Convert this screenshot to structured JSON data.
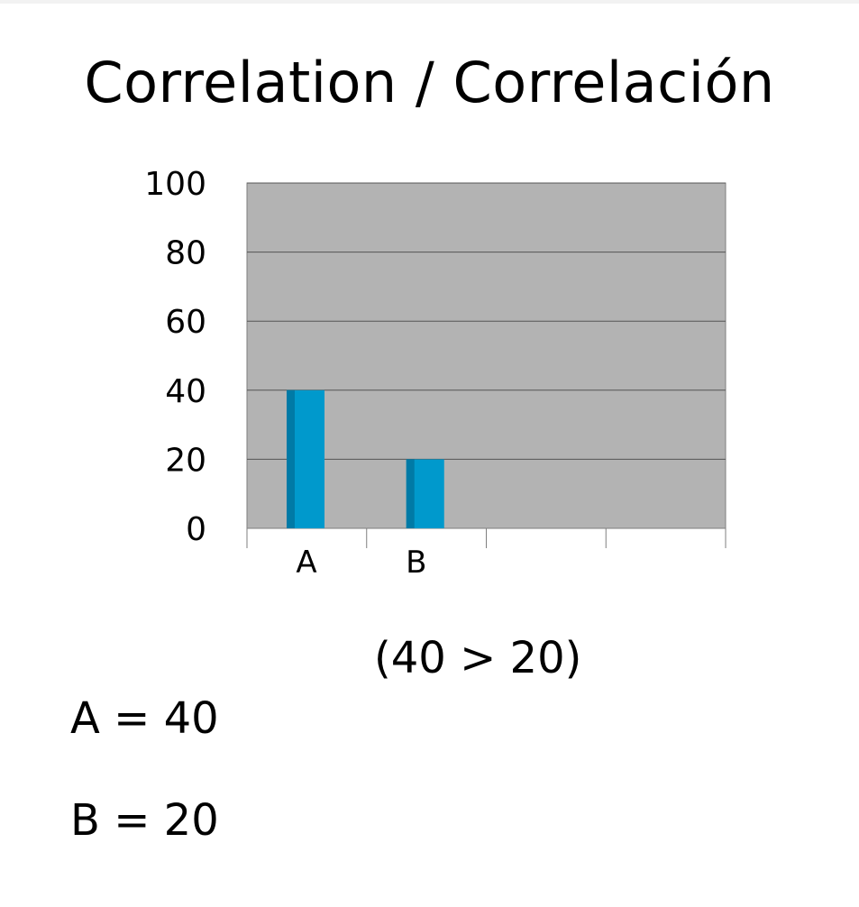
{
  "title": "Correlation / Correlación",
  "comparison": "(40 > 20)",
  "stats": [
    {
      "label": "A = 40"
    },
    {
      "label": "B = 20"
    }
  ],
  "colors": {
    "plot_background": "#b3b3b3",
    "bar_front": "#0099cc",
    "bar_side": "#007aa6",
    "gridline": "#555555"
  },
  "chart_data": {
    "type": "bar",
    "title": "",
    "xlabel": "",
    "ylabel": "",
    "categories": [
      "A",
      "B",
      "",
      ""
    ],
    "values": [
      40,
      20,
      null,
      null
    ],
    "ylim": [
      0,
      100
    ],
    "yticks": [
      0,
      20,
      40,
      60,
      80,
      100
    ],
    "grid": true,
    "legend": "none"
  }
}
